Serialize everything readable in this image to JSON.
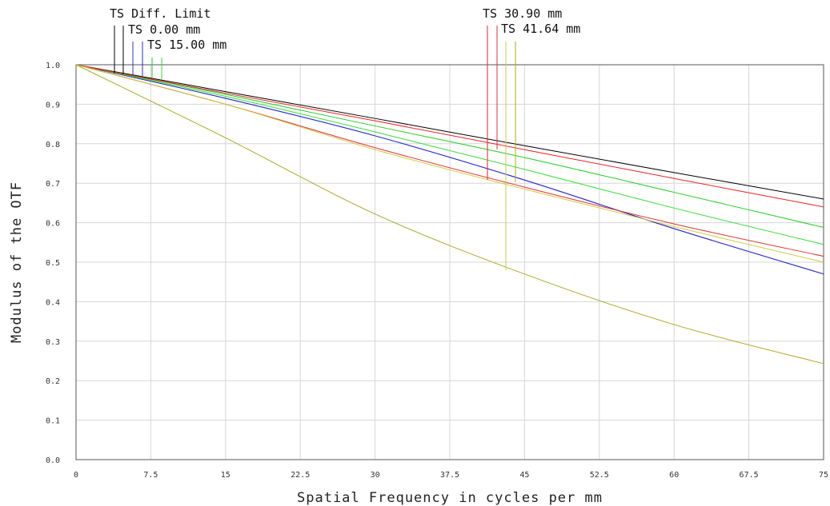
{
  "chart_data": {
    "type": "line",
    "title": "",
    "xlabel": "Spatial Frequency in cycles per mm",
    "ylabel": "Modulus of the OTF",
    "xlim": [
      0,
      75
    ],
    "ylim": [
      0,
      1
    ],
    "grid": true,
    "x_ticks": [
      "0",
      "7.5",
      "15",
      "22.5",
      "30",
      "37.5",
      "45",
      "52.5",
      "60",
      "67.5",
      "75"
    ],
    "y_ticks": [
      "0.0",
      "0.1",
      "0.2",
      "0.3",
      "0.4",
      "0.5",
      "0.6",
      "0.7",
      "0.8",
      "0.9",
      "1.0"
    ],
    "legend_labels": [
      "TS Diff. Limit",
      "TS 0.00 mm",
      "TS 15.00 mm",
      "TS 30.90 mm",
      "TS 41.64 mm"
    ],
    "series": [
      {
        "color": "#000000",
        "x": [
          0,
          15,
          30,
          45,
          60,
          75
        ],
        "values": [
          1.0,
          0.932,
          0.864,
          0.795,
          0.727,
          0.66
        ]
      },
      {
        "color": "#3333cc",
        "x": [
          0,
          15,
          30,
          45,
          60,
          75
        ],
        "values": [
          1.0,
          0.915,
          0.82,
          0.708,
          0.585,
          0.47
        ]
      },
      {
        "color": "#2a2ad0",
        "x": [
          0,
          15,
          30,
          45,
          60,
          75
        ],
        "values": [
          1.0,
          0.915,
          0.82,
          0.708,
          0.585,
          0.47
        ]
      },
      {
        "color": "#22cc22",
        "x": [
          0,
          15,
          30,
          45,
          60,
          75
        ],
        "values": [
          1.0,
          0.925,
          0.845,
          0.765,
          0.677,
          0.588
        ]
      },
      {
        "color": "#33dd33",
        "x": [
          0,
          15,
          30,
          45,
          60,
          75
        ],
        "values": [
          1.0,
          0.92,
          0.83,
          0.735,
          0.637,
          0.545
        ]
      },
      {
        "color": "#ee2222",
        "x": [
          0,
          15,
          30,
          45,
          60,
          75
        ],
        "values": [
          1.0,
          0.928,
          0.858,
          0.785,
          0.712,
          0.64
        ]
      },
      {
        "color": "#dd3333",
        "x": [
          0,
          15,
          30,
          45,
          60,
          75
        ],
        "values": [
          1.0,
          0.9,
          0.79,
          0.69,
          0.597,
          0.515
        ]
      },
      {
        "color": "#cccc44",
        "x": [
          0,
          15,
          30,
          45,
          60,
          75
        ],
        "values": [
          1.0,
          0.9,
          0.785,
          0.685,
          0.59,
          0.5
        ]
      },
      {
        "color": "#aaaa22",
        "x": [
          0,
          15,
          30,
          45,
          60,
          75
        ],
        "values": [
          1.0,
          0.815,
          0.622,
          0.47,
          0.342,
          0.243
        ]
      }
    ]
  }
}
